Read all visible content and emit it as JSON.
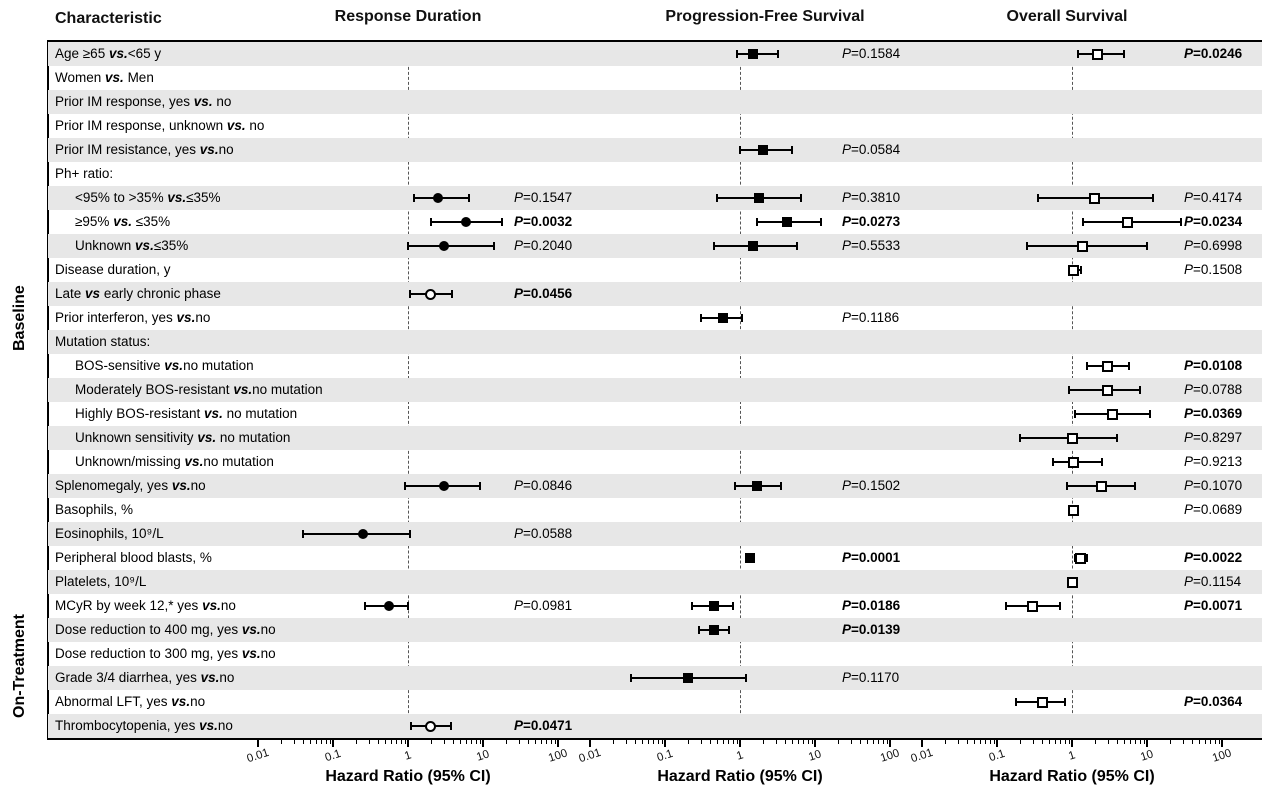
{
  "header": {
    "characteristic": "Characteristic",
    "panels": [
      "Response Duration",
      "Progression-Free Survival",
      "Overall Survival"
    ]
  },
  "groups": [
    {
      "label": "Baseline",
      "start": 0,
      "end": 22
    },
    {
      "label": "On-Treatment",
      "start": 23,
      "end": 28
    }
  ],
  "p_prefix": "P=",
  "axis": {
    "title": "Hazard Ratio (95% CI)",
    "min": 0.01,
    "max": 100,
    "reference": 1,
    "scale": "log",
    "ticks": [
      0.01,
      0.1,
      1,
      10,
      100
    ],
    "tick_labels": [
      "0.01",
      "0.1",
      "1",
      "10",
      "100"
    ]
  },
  "chart_data": {
    "type": "forest",
    "reference_line": 1,
    "panels": [
      {
        "key": "rd",
        "name": "Response Duration",
        "marker": "filled-circle (open circle for some rows)"
      },
      {
        "key": "pfs",
        "name": "Progression-Free Survival",
        "marker": "filled-square"
      },
      {
        "key": "os",
        "name": "Overall Survival",
        "marker": "open-square"
      }
    ],
    "rows": [
      {
        "label": "Age ≥65 vs.<65 y",
        "pfs": {
          "hr": 1.5,
          "lo": 0.9,
          "hi": 3.2,
          "p": "0.1584",
          "bold": false
        },
        "os": {
          "hr": 2.2,
          "lo": 1.2,
          "hi": 5.0,
          "p": "0.0246",
          "bold": true
        }
      },
      {
        "label": "Women vs. Men"
      },
      {
        "label": "Prior IM response, yes vs. no"
      },
      {
        "label": "Prior IM response, unknown vs. no"
      },
      {
        "label": "Prior IM resistance, yes vs.no",
        "pfs": {
          "hr": 2.0,
          "lo": 1.0,
          "hi": 4.9,
          "p": "0.0584",
          "bold": false
        }
      },
      {
        "label": "Ph+ ratio:"
      },
      {
        "label": "<95% to >35% vs.≤35%",
        "indent": true,
        "rd": {
          "hr": 2.5,
          "lo": 1.2,
          "hi": 6.5,
          "p": "0.1547",
          "bold": false
        },
        "pfs": {
          "hr": 1.8,
          "lo": 0.5,
          "hi": 6.5,
          "p": "0.3810",
          "bold": false
        },
        "os": {
          "hr": 2.0,
          "lo": 0.35,
          "hi": 12,
          "p": "0.4174",
          "bold": false
        }
      },
      {
        "label": "≥95% vs. ≤35%",
        "indent": true,
        "rd": {
          "hr": 6.0,
          "lo": 2.0,
          "hi": 18,
          "p": "0.0032",
          "bold": true
        },
        "pfs": {
          "hr": 4.2,
          "lo": 1.7,
          "hi": 12,
          "p": "0.0273",
          "bold": true
        },
        "os": {
          "hr": 5.5,
          "lo": 1.4,
          "hi": 28,
          "p": "0.0234",
          "bold": true
        }
      },
      {
        "label": "Unknown vs.≤35%",
        "indent": true,
        "rd": {
          "hr": 3.0,
          "lo": 1.0,
          "hi": 14,
          "p": "0.2040",
          "bold": false
        },
        "pfs": {
          "hr": 1.5,
          "lo": 0.45,
          "hi": 5.7,
          "p": "0.5533",
          "bold": false
        },
        "os": {
          "hr": 1.4,
          "lo": 0.25,
          "hi": 10,
          "p": "0.6998",
          "bold": false
        }
      },
      {
        "label": "Disease duration, y",
        "os": {
          "hr": 1.05,
          "lo": 0.95,
          "hi": 1.3,
          "p": "0.1508",
          "bold": false
        }
      },
      {
        "label": "Late vs early chronic phase",
        "rd": {
          "hr": 2.0,
          "lo": 1.05,
          "hi": 3.9,
          "p": "0.0456",
          "bold": true,
          "open": true
        }
      },
      {
        "label": "Prior interferon, yes vs.no",
        "pfs": {
          "hr": 0.6,
          "lo": 0.3,
          "hi": 1.05,
          "p": "0.1186",
          "bold": false
        }
      },
      {
        "label": "Mutation status:"
      },
      {
        "label": "BOS-sensitive vs.no mutation",
        "indent": true,
        "os": {
          "hr": 3.0,
          "lo": 1.6,
          "hi": 5.8,
          "p": "0.0108",
          "bold": true
        }
      },
      {
        "label": "Moderately BOS-resistant vs.no mutation",
        "indent": true,
        "os": {
          "hr": 3.0,
          "lo": 0.9,
          "hi": 8.0,
          "p": "0.0788",
          "bold": false
        }
      },
      {
        "label": "Highly BOS-resistant vs. no mutation",
        "indent": true,
        "os": {
          "hr": 3.5,
          "lo": 1.1,
          "hi": 11,
          "p": "0.0369",
          "bold": true
        }
      },
      {
        "label": "Unknown sensitivity vs. no mutation",
        "indent": true,
        "os": {
          "hr": 1.0,
          "lo": 0.2,
          "hi": 4.0,
          "p": "0.8297",
          "bold": false
        }
      },
      {
        "label": "Unknown/missing vs.no mutation",
        "indent": true,
        "os": {
          "hr": 1.05,
          "lo": 0.55,
          "hi": 2.5,
          "p": "0.9213",
          "bold": false
        }
      },
      {
        "label": "Splenomegaly, yes vs.no",
        "rd": {
          "hr": 3.0,
          "lo": 0.9,
          "hi": 9.0,
          "p": "0.0846",
          "bold": false
        },
        "pfs": {
          "hr": 1.7,
          "lo": 0.85,
          "hi": 3.5,
          "p": "0.1502",
          "bold": false
        },
        "os": {
          "hr": 2.5,
          "lo": 0.85,
          "hi": 7.0,
          "p": "0.1070",
          "bold": false
        }
      },
      {
        "label": "Basophils, %",
        "os": {
          "hr": 1.05,
          "lo": 1.0,
          "hi": 1.12,
          "p": "0.0689",
          "bold": false
        }
      },
      {
        "label": "Eosinophils, 10⁹/L",
        "rd": {
          "hr": 0.25,
          "lo": 0.04,
          "hi": 1.05,
          "p": "0.0588",
          "bold": false
        }
      },
      {
        "label": "Peripheral blood blasts, %",
        "pfs": {
          "hr": 1.35,
          "lo": 1.2,
          "hi": 1.55,
          "p": "0.0001",
          "bold": true
        },
        "os": {
          "hr": 1.3,
          "lo": 1.1,
          "hi": 1.6,
          "p": "0.0022",
          "bold": true
        }
      },
      {
        "label": "Platelets, 10⁹/L",
        "os": {
          "hr": 1.0,
          "lo": 0.97,
          "hi": 1.05,
          "p": "0.1154",
          "bold": false
        }
      },
      {
        "label": "MCyR by week 12,* yes vs.no",
        "rd": {
          "hr": 0.55,
          "lo": 0.27,
          "hi": 1.0,
          "p": "0.0981",
          "bold": false
        },
        "pfs": {
          "hr": 0.45,
          "lo": 0.23,
          "hi": 0.8,
          "p": "0.0186",
          "bold": true
        },
        "os": {
          "hr": 0.3,
          "lo": 0.13,
          "hi": 0.7,
          "p": "0.0071",
          "bold": true
        }
      },
      {
        "label": "Dose reduction to 400 mg, yes vs.no",
        "pfs": {
          "hr": 0.45,
          "lo": 0.28,
          "hi": 0.72,
          "p": "0.0139",
          "bold": true
        }
      },
      {
        "label": "Dose reduction to 300 mg, yes vs.no"
      },
      {
        "label": "Grade 3/4 diarrhea, yes vs.no",
        "pfs": {
          "hr": 0.2,
          "lo": 0.035,
          "hi": 1.2,
          "p": "0.1170",
          "bold": false
        }
      },
      {
        "label": "Abnormal LFT, yes vs.no",
        "os": {
          "hr": 0.4,
          "lo": 0.18,
          "hi": 0.8,
          "p": "0.0364",
          "bold": true
        }
      },
      {
        "label": "Thrombocytopenia, yes vs.no",
        "rd": {
          "hr": 2.0,
          "lo": 1.1,
          "hi": 3.8,
          "p": "0.0471",
          "bold": true,
          "open": true
        }
      }
    ]
  }
}
